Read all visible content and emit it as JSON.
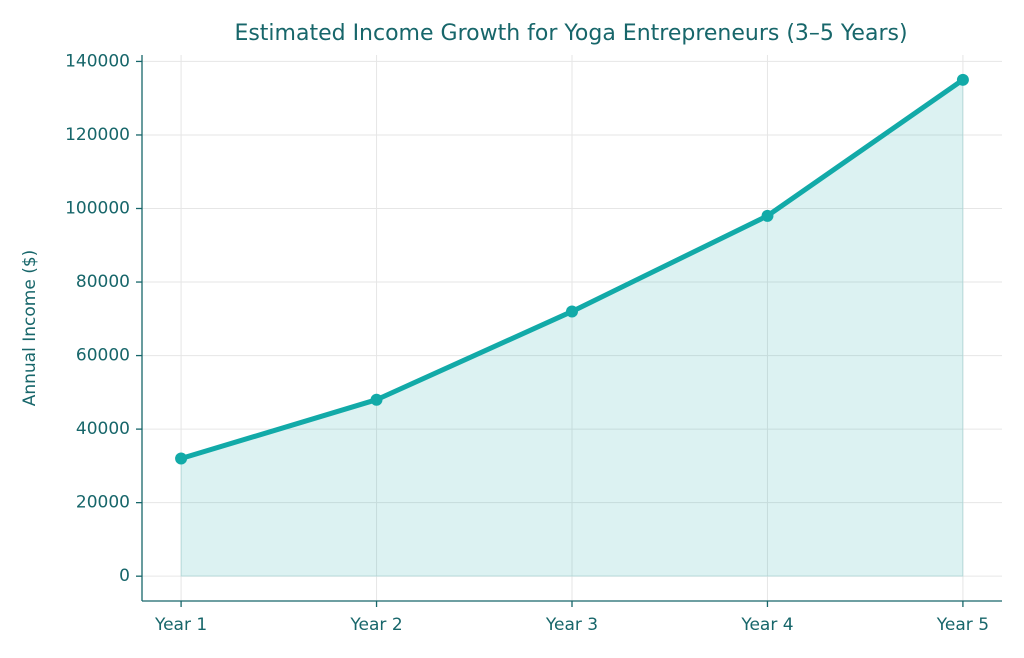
{
  "chart_data": {
    "type": "line",
    "title": "Estimated Income Growth for Yoga Entrepreneurs (3–5 Years)",
    "y_label": "Annual Income ($)",
    "categories": [
      "Year 1",
      "Year 2",
      "Year 3",
      "Year 4",
      "Year 5"
    ],
    "values": [
      32000,
      48000,
      72000,
      98000,
      135000
    ],
    "color": "#12aaa8",
    "fill_area": true,
    "ylim": [
      -6750,
      141750
    ],
    "yticks": [
      0,
      20000,
      40000,
      60000,
      80000,
      100000,
      120000,
      140000
    ],
    "grid": true
  }
}
